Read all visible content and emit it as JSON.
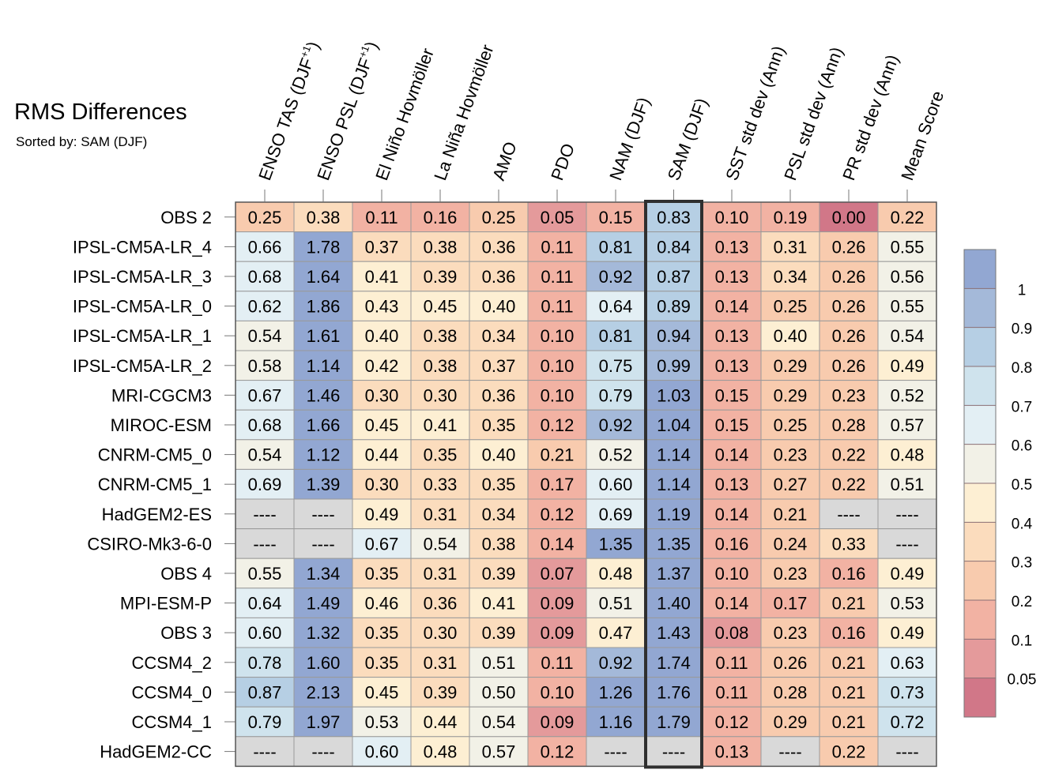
{
  "title": "RMS Differences",
  "subtitle": "Sorted by: SAM (DJF)",
  "chart_data": {
    "type": "heatmap",
    "columns": [
      {
        "pre": "ENSO TAS (DJF",
        "sup": "+1",
        "post": ")"
      },
      {
        "pre": "ENSO PSL (DJF",
        "sup": "+1",
        "post": ")"
      },
      {
        "pre": "El Niño Hovmöller"
      },
      {
        "pre": "La Niña Hovmöller"
      },
      {
        "pre": "AMO"
      },
      {
        "pre": "PDO"
      },
      {
        "pre": "NAM (DJF)"
      },
      {
        "pre": "SAM (DJF)"
      },
      {
        "pre": "SST std dev (Ann)"
      },
      {
        "pre": "PSL std dev (Ann)"
      },
      {
        "pre": "PR std dev (Ann)"
      },
      {
        "pre": "Mean Score"
      }
    ],
    "rows": [
      "OBS 2",
      "IPSL-CM5A-LR_4",
      "IPSL-CM5A-LR_3",
      "IPSL-CM5A-LR_0",
      "IPSL-CM5A-LR_1",
      "IPSL-CM5A-LR_2",
      "MRI-CGCM3",
      "MIROC-ESM",
      "CNRM-CM5_0",
      "CNRM-CM5_1",
      "HadGEM2-ES",
      "CSIRO-Mk3-6-0",
      "OBS 4",
      "MPI-ESM-P",
      "OBS 3",
      "CCSM4_2",
      "CCSM4_0",
      "CCSM4_1",
      "HadGEM2-CC"
    ],
    "values": [
      [
        "0.25",
        "0.38",
        "0.11",
        "0.16",
        "0.25",
        "0.05",
        "0.15",
        "0.83",
        "0.10",
        "0.19",
        "0.00",
        "0.22"
      ],
      [
        "0.66",
        "1.78",
        "0.37",
        "0.38",
        "0.36",
        "0.11",
        "0.81",
        "0.84",
        "0.13",
        "0.31",
        "0.26",
        "0.55"
      ],
      [
        "0.68",
        "1.64",
        "0.41",
        "0.39",
        "0.36",
        "0.11",
        "0.92",
        "0.87",
        "0.13",
        "0.34",
        "0.26",
        "0.56"
      ],
      [
        "0.62",
        "1.86",
        "0.43",
        "0.45",
        "0.40",
        "0.11",
        "0.64",
        "0.89",
        "0.14",
        "0.25",
        "0.26",
        "0.55"
      ],
      [
        "0.54",
        "1.61",
        "0.40",
        "0.38",
        "0.34",
        "0.10",
        "0.81",
        "0.94",
        "0.13",
        "0.40",
        "0.26",
        "0.54"
      ],
      [
        "0.58",
        "1.14",
        "0.42",
        "0.38",
        "0.37",
        "0.10",
        "0.75",
        "0.99",
        "0.13",
        "0.29",
        "0.26",
        "0.49"
      ],
      [
        "0.67",
        "1.46",
        "0.30",
        "0.30",
        "0.36",
        "0.10",
        "0.79",
        "1.03",
        "0.15",
        "0.29",
        "0.23",
        "0.52"
      ],
      [
        "0.68",
        "1.66",
        "0.45",
        "0.41",
        "0.35",
        "0.12",
        "0.92",
        "1.04",
        "0.15",
        "0.25",
        "0.28",
        "0.57"
      ],
      [
        "0.54",
        "1.12",
        "0.44",
        "0.35",
        "0.40",
        "0.21",
        "0.52",
        "1.14",
        "0.14",
        "0.23",
        "0.22",
        "0.48"
      ],
      [
        "0.69",
        "1.39",
        "0.30",
        "0.33",
        "0.35",
        "0.17",
        "0.60",
        "1.14",
        "0.13",
        "0.27",
        "0.22",
        "0.51"
      ],
      [
        "----",
        "----",
        "0.49",
        "0.31",
        "0.34",
        "0.12",
        "0.69",
        "1.19",
        "0.14",
        "0.21",
        "----",
        "----"
      ],
      [
        "----",
        "----",
        "0.67",
        "0.54",
        "0.38",
        "0.14",
        "1.35",
        "1.35",
        "0.16",
        "0.24",
        "0.33",
        "----"
      ],
      [
        "0.55",
        "1.34",
        "0.35",
        "0.31",
        "0.39",
        "0.07",
        "0.48",
        "1.37",
        "0.10",
        "0.23",
        "0.16",
        "0.49"
      ],
      [
        "0.64",
        "1.49",
        "0.46",
        "0.36",
        "0.41",
        "0.09",
        "0.51",
        "1.40",
        "0.14",
        "0.17",
        "0.21",
        "0.53"
      ],
      [
        "0.60",
        "1.32",
        "0.35",
        "0.30",
        "0.39",
        "0.09",
        "0.47",
        "1.43",
        "0.08",
        "0.23",
        "0.16",
        "0.49"
      ],
      [
        "0.78",
        "1.60",
        "0.35",
        "0.31",
        "0.51",
        "0.11",
        "0.92",
        "1.74",
        "0.11",
        "0.26",
        "0.21",
        "0.63"
      ],
      [
        "0.87",
        "2.13",
        "0.45",
        "0.39",
        "0.50",
        "0.10",
        "1.26",
        "1.76",
        "0.11",
        "0.28",
        "0.21",
        "0.73"
      ],
      [
        "0.79",
        "1.97",
        "0.53",
        "0.44",
        "0.54",
        "0.09",
        "1.16",
        "1.79",
        "0.12",
        "0.29",
        "0.21",
        "0.72"
      ],
      [
        "----",
        "----",
        "0.60",
        "0.48",
        "0.57",
        "0.12",
        "----",
        "----",
        "0.13",
        "----",
        "0.22",
        "----"
      ]
    ],
    "highlighted_column": "SAM (DJF)",
    "missing_value": "----",
    "missing_color": "#d9d9d9",
    "colorbar": {
      "labels": [
        "1",
        "0.9",
        "0.8",
        "0.7",
        "0.6",
        "0.5",
        "0.4",
        "0.3",
        "0.2",
        "0.1",
        "0.05"
      ],
      "bounds": [
        0.05,
        0.1,
        0.2,
        0.3,
        0.4,
        0.5,
        0.6,
        0.7,
        0.8,
        0.9,
        1
      ],
      "colors": [
        "#d17788",
        "#e49a9b",
        "#f2b2a3",
        "#f8cbae",
        "#fbdcbd",
        "#fdefd3",
        "#f2f1e7",
        "#e3eff4",
        "#cfe3ed",
        "#b6cfe4",
        "#a4b9d9",
        "#92a7d2"
      ]
    }
  }
}
